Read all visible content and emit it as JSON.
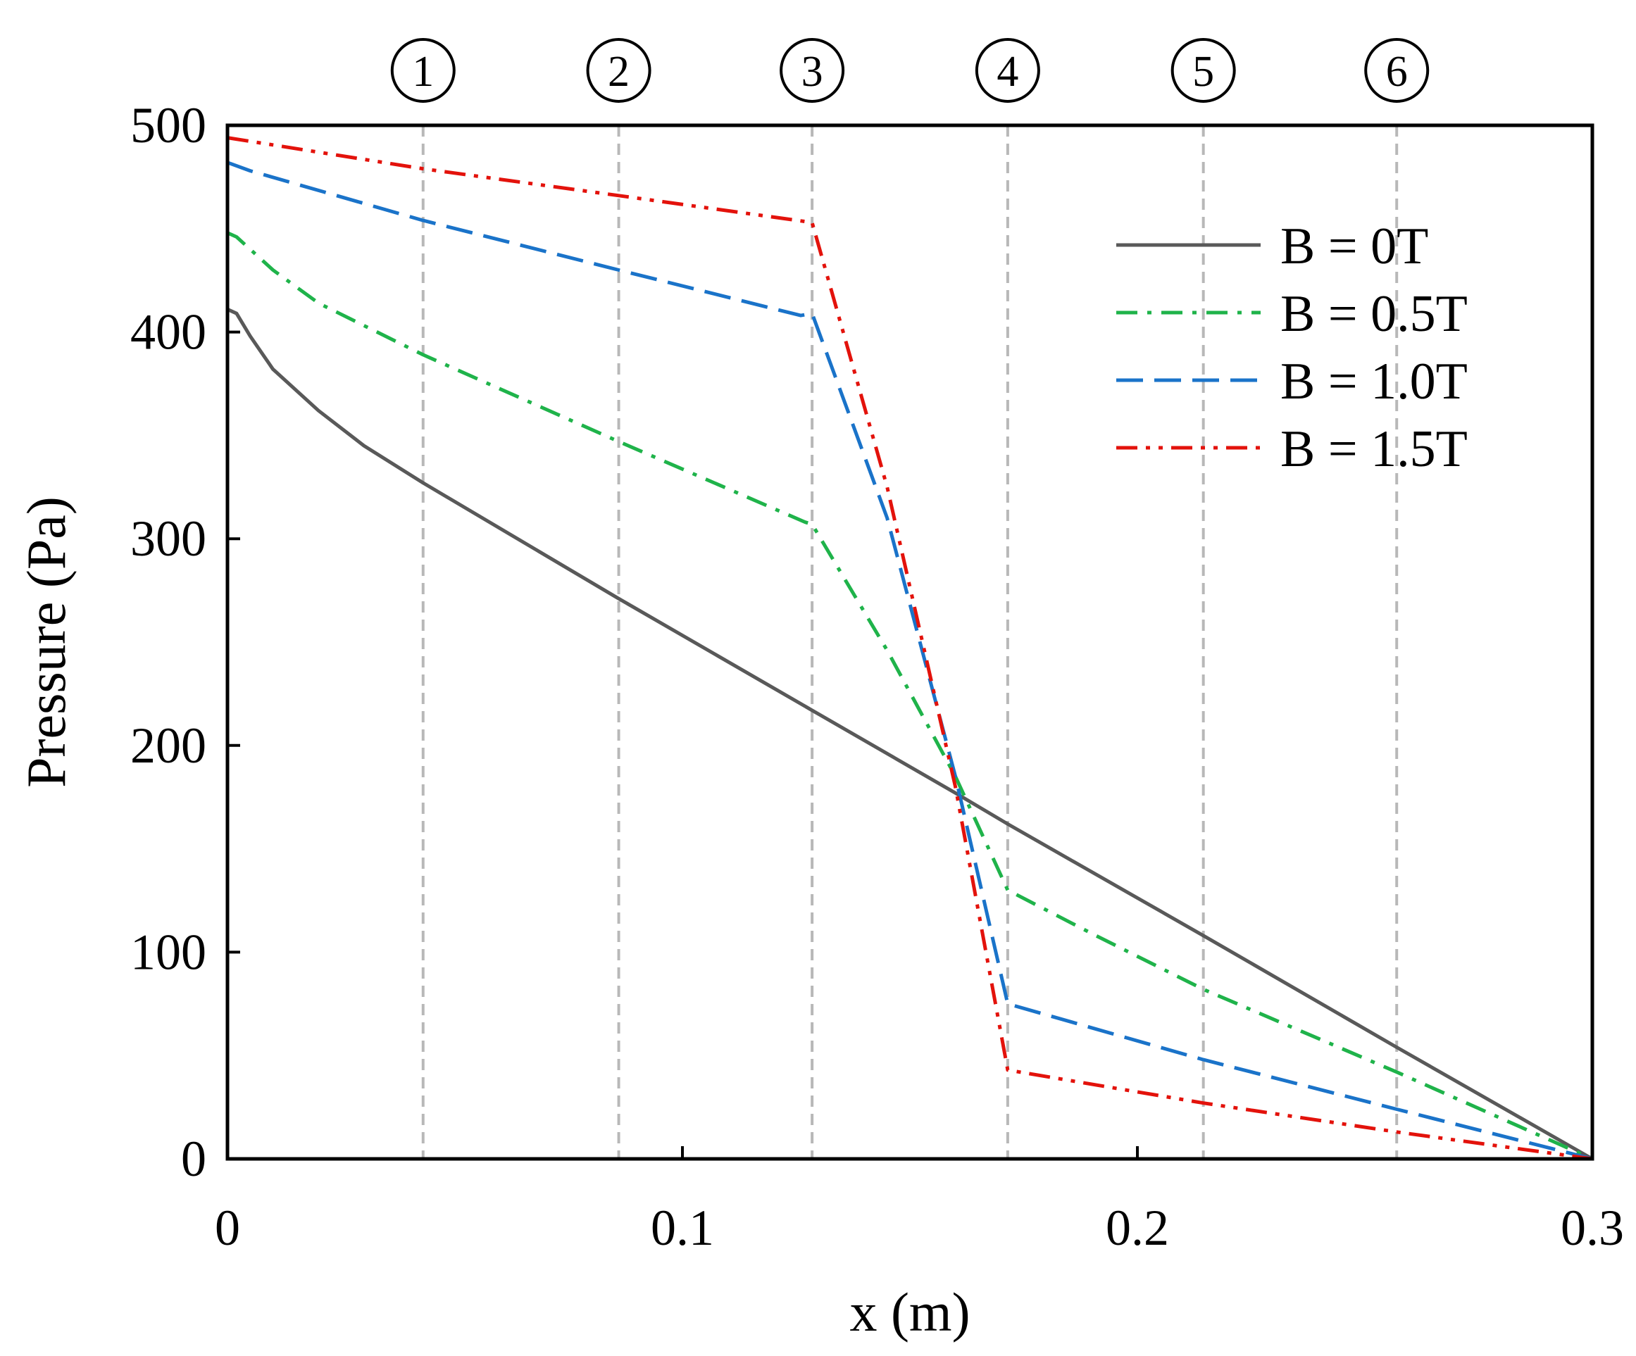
{
  "chart_data": {
    "type": "line",
    "title": "",
    "xlabel": "x (m)",
    "ylabel": "Pressure (Pa)",
    "xlim": [
      0,
      0.3
    ],
    "ylim": [
      0,
      500
    ],
    "xticks": [
      0,
      0.1,
      0.2,
      0.3
    ],
    "xtick_labels": [
      "0",
      "0.1",
      "0.2",
      "0.3"
    ],
    "yticks": [
      0,
      100,
      200,
      300,
      400,
      500
    ],
    "ytick_labels": [
      "0",
      "100",
      "200",
      "300",
      "400",
      "500"
    ],
    "grid": false,
    "legend_position": "top-right",
    "section_markers": [
      {
        "label": "1",
        "x": 0.043
      },
      {
        "label": "2",
        "x": 0.086
      },
      {
        "label": "3",
        "x": 0.1285
      },
      {
        "label": "4",
        "x": 0.1715
      },
      {
        "label": "5",
        "x": 0.2145
      },
      {
        "label": "6",
        "x": 0.257
      }
    ],
    "series": [
      {
        "name": "B = 0T",
        "color": "#595959",
        "style": "solid",
        "x": [
          0,
          0.002,
          0.005,
          0.01,
          0.02,
          0.03,
          0.043,
          0.086,
          0.1285,
          0.16,
          0.1715,
          0.2145,
          0.257,
          0.3
        ],
        "y": [
          411,
          409,
          398,
          382,
          362,
          345,
          327,
          271,
          217,
          177,
          162,
          108,
          54,
          0
        ]
      },
      {
        "name": "B = 0.5T",
        "color": "#1fb34a",
        "style": "dashdot",
        "x": [
          0,
          0.002,
          0.01,
          0.02,
          0.043,
          0.086,
          0.127,
          0.1285,
          0.145,
          0.16,
          0.1715,
          0.19,
          0.2145,
          0.257,
          0.3
        ],
        "y": [
          448,
          446,
          430,
          414,
          389,
          347,
          308,
          307,
          246,
          185,
          130,
          109,
          82,
          42,
          0
        ]
      },
      {
        "name": "B = 1.0T",
        "color": "#1a73c9",
        "style": "dashed",
        "x": [
          0,
          0.005,
          0.043,
          0.086,
          0.126,
          0.1285,
          0.145,
          0.16,
          0.1715,
          0.2145,
          0.257,
          0.3
        ],
        "y": [
          482,
          478,
          454,
          430,
          408,
          409,
          310,
          185,
          75,
          48,
          24,
          0
        ]
      },
      {
        "name": "B = 1.5T",
        "color": "#e3120b",
        "style": "dashdotdot",
        "x": [
          0,
          0.043,
          0.086,
          0.1285,
          0.145,
          0.16,
          0.1715,
          0.2145,
          0.257,
          0.3
        ],
        "y": [
          494,
          479,
          466,
          453,
          325,
          180,
          43,
          27,
          13,
          0
        ]
      }
    ]
  }
}
